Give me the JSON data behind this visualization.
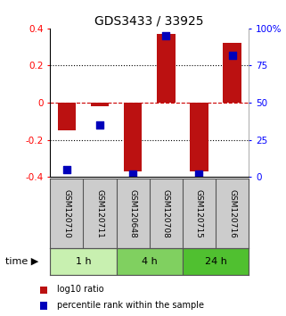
{
  "title": "GDS3433 / 33925",
  "samples": [
    "GSM120710",
    "GSM120711",
    "GSM120648",
    "GSM120708",
    "GSM120715",
    "GSM120716"
  ],
  "log10_ratio": [
    -0.15,
    -0.02,
    -0.37,
    0.37,
    -0.37,
    0.32
  ],
  "percentile_rank": [
    5,
    35,
    2,
    95,
    2,
    82
  ],
  "time_groups": [
    {
      "label": "1 h",
      "start": 0,
      "end": 2,
      "color": "#c8f0b0"
    },
    {
      "label": "4 h",
      "start": 2,
      "end": 4,
      "color": "#80d060"
    },
    {
      "label": "24 h",
      "start": 4,
      "end": 6,
      "color": "#50c030"
    }
  ],
  "ylim": [
    -0.4,
    0.4
  ],
  "y2lim": [
    0,
    100
  ],
  "yticks": [
    -0.4,
    -0.2,
    0.0,
    0.2,
    0.4
  ],
  "y2ticks": [
    0,
    25,
    50,
    75,
    100
  ],
  "ytick_labels": [
    "-0.4",
    "-0.2",
    "0",
    "0.2",
    "0.4"
  ],
  "y2tick_labels": [
    "0",
    "25",
    "50",
    "75",
    "100%"
  ],
  "bar_color": "#bb1111",
  "dot_color": "#0000bb",
  "dot_size": 35,
  "bar_width": 0.55,
  "dot_line_color": "#000000",
  "dashed_zero_color": "#cc0000",
  "bg_color": "#ffffff",
  "label_area_color": "#cccccc",
  "legend_red_label": "log10 ratio",
  "legend_blue_label": "percentile rank within the sample",
  "title_fontsize": 10,
  "tick_fontsize": 7.5,
  "sample_fontsize": 6.5,
  "time_fontsize": 8,
  "legend_fontsize": 7
}
